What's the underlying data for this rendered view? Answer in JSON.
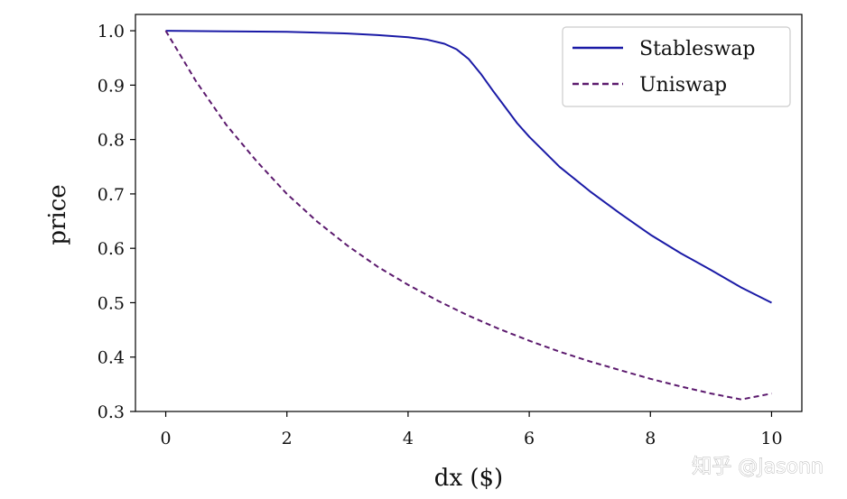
{
  "chart_data": {
    "type": "line",
    "title": "",
    "xlabel": "dx ($)",
    "ylabel": "price",
    "xlim": [
      -0.5,
      10.5
    ],
    "ylim": [
      0.3,
      1.03
    ],
    "xticks": [
      "0",
      "2",
      "4",
      "6",
      "8",
      "10"
    ],
    "yticks": [
      "0.3",
      "0.4",
      "0.5",
      "0.6",
      "0.7",
      "0.8",
      "0.9",
      "1.0"
    ],
    "grid": false,
    "legend_position": "top-right",
    "series": [
      {
        "name": "Stableswap",
        "color": "#1a1aa6",
        "dash": "solid",
        "x": [
          0,
          1,
          2,
          3,
          3.5,
          4,
          4.3,
          4.6,
          4.8,
          5,
          5.2,
          5.4,
          5.6,
          5.8,
          6,
          6.5,
          7,
          7.5,
          8,
          8.5,
          9,
          9.5,
          10
        ],
        "y": [
          1.0,
          0.999,
          0.998,
          0.995,
          0.992,
          0.988,
          0.984,
          0.976,
          0.966,
          0.948,
          0.921,
          0.89,
          0.86,
          0.83,
          0.805,
          0.75,
          0.705,
          0.664,
          0.625,
          0.591,
          0.56,
          0.528,
          0.5
        ]
      },
      {
        "name": "Uniswap",
        "color": "#5c1a6e",
        "dash": "dashed",
        "x": [
          0,
          0.5,
          1,
          1.5,
          2,
          2.5,
          3,
          3.5,
          4,
          4.5,
          5,
          5.5,
          6,
          6.5,
          7,
          7.5,
          8,
          8.5,
          9,
          9.5,
          10
        ],
        "y": [
          1.0,
          0.907,
          0.827,
          0.76,
          0.7,
          0.649,
          0.605,
          0.566,
          0.533,
          0.503,
          0.476,
          0.452,
          0.43,
          0.41,
          0.392,
          0.376,
          0.36,
          0.346,
          0.333,
          0.322,
          0.333
        ]
      }
    ]
  },
  "watermark": "知乎 @Jasonn"
}
